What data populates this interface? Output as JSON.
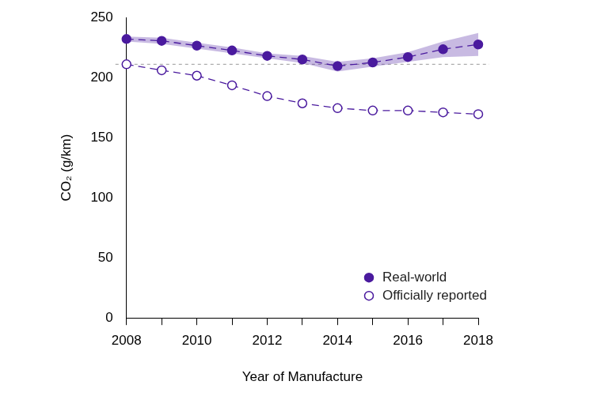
{
  "chart_data": {
    "type": "line",
    "x_label": "Year of Manufacture",
    "y_label": "CO₂ (g/km)",
    "categories": [
      2008,
      null,
      2010,
      null,
      2012,
      null,
      2014,
      null,
      2016,
      null,
      2018
    ],
    "series": [
      {
        "name": "Real-world",
        "color": "#4a1a9e",
        "marker": "filled circle",
        "line_style": "dashed",
        "values": [
          232,
          230.5,
          226.5,
          222.5,
          218,
          215,
          209.5,
          212.5,
          217,
          223.5,
          227.5
        ],
        "lower": [
          230,
          228,
          224,
          220,
          216,
          212,
          205,
          209,
          213,
          217,
          218
        ],
        "upper": [
          234,
          233,
          229,
          225,
          220,
          218,
          213,
          216,
          221,
          230,
          237
        ]
      },
      {
        "name": "Officially reported",
        "color": "#4a1a9e",
        "marker": "open circle",
        "line_style": "dashed",
        "values": [
          211,
          206,
          201.5,
          193.5,
          184.5,
          178.5,
          174.5,
          172.5,
          172.5,
          171,
          169.5
        ]
      }
    ],
    "ylim": [
      0,
      250
    ],
    "yticks": [
      0,
      50,
      100,
      150,
      200,
      250
    ],
    "reference_line": 211,
    "grid": false,
    "legend": "bottom right"
  }
}
